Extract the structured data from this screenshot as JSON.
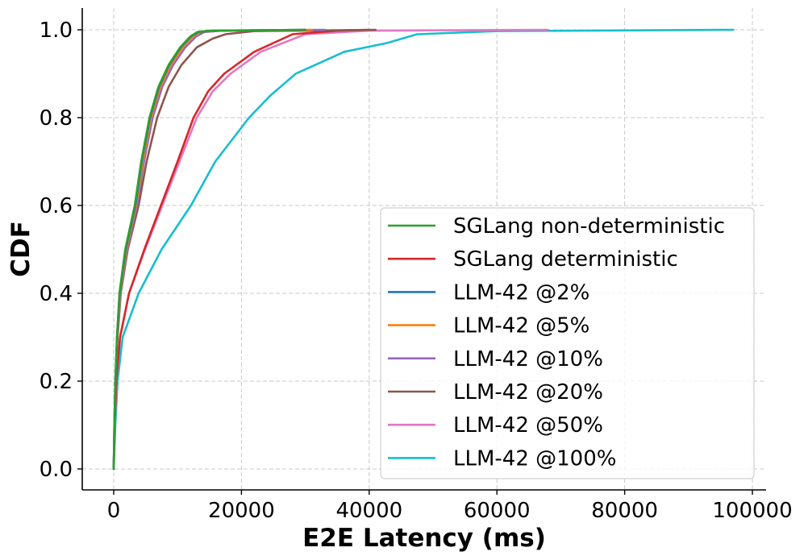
{
  "chart_data": {
    "type": "line",
    "title": "",
    "xlabel": "E2E Latency (ms)",
    "ylabel": "CDF",
    "xlim": [
      -5000,
      102000
    ],
    "ylim": [
      -0.05,
      1.05
    ],
    "xticks": [
      0,
      20000,
      40000,
      60000,
      80000,
      100000
    ],
    "xtick_labels": [
      "0",
      "20000",
      "40000",
      "60000",
      "80000",
      "100000"
    ],
    "yticks": [
      0.0,
      0.2,
      0.4,
      0.6,
      0.8,
      1.0
    ],
    "ytick_labels": [
      "0.0",
      "0.2",
      "0.4",
      "0.6",
      "0.8",
      "1.0"
    ],
    "grid": true,
    "legend_position": "lower-right",
    "series": [
      {
        "name": "SGLang non-deterministic",
        "color": "#2ca02c",
        "x": [
          0,
          100,
          250,
          500,
          900,
          1800,
          3300,
          4300,
          5600,
          7000,
          8600,
          10400,
          12000,
          13100,
          15000,
          30000
        ],
        "y": [
          0,
          0.1,
          0.2,
          0.3,
          0.4,
          0.5,
          0.6,
          0.7,
          0.8,
          0.87,
          0.92,
          0.96,
          0.985,
          0.995,
          0.998,
          1.0
        ]
      },
      {
        "name": "SGLang deterministic",
        "color": "#d62728",
        "x": [
          0,
          150,
          400,
          1000,
          2400,
          4800,
          7400,
          10000,
          12500,
          14800,
          17300,
          22000,
          28000,
          35000,
          40000
        ],
        "y": [
          0,
          0.1,
          0.2,
          0.3,
          0.4,
          0.5,
          0.6,
          0.7,
          0.8,
          0.86,
          0.9,
          0.95,
          0.99,
          0.998,
          1.0
        ]
      },
      {
        "name": "LLM-42 @2%",
        "color": "#1f77b4",
        "x": [
          0,
          100,
          260,
          520,
          950,
          1900,
          3400,
          4400,
          5700,
          7100,
          8700,
          10500,
          12100,
          13300,
          15500,
          30000
        ],
        "y": [
          0,
          0.1,
          0.2,
          0.3,
          0.4,
          0.5,
          0.6,
          0.7,
          0.8,
          0.87,
          0.92,
          0.96,
          0.985,
          0.995,
          0.998,
          1.0
        ]
      },
      {
        "name": "LLM-42 @5%",
        "color": "#ff7f0e",
        "x": [
          0,
          105,
          270,
          540,
          1000,
          2000,
          3500,
          4550,
          5850,
          7300,
          8950,
          10800,
          12400,
          13600,
          16000,
          31000
        ],
        "y": [
          0,
          0.1,
          0.2,
          0.3,
          0.4,
          0.5,
          0.6,
          0.7,
          0.8,
          0.87,
          0.92,
          0.96,
          0.985,
          0.995,
          0.998,
          1.0
        ]
      },
      {
        "name": "LLM-42 @10%",
        "color": "#9467bd",
        "x": [
          0,
          110,
          280,
          560,
          1050,
          2100,
          3650,
          4750,
          6100,
          7600,
          9300,
          11200,
          12900,
          14200,
          17000,
          33000
        ],
        "y": [
          0,
          0.1,
          0.2,
          0.3,
          0.4,
          0.5,
          0.6,
          0.7,
          0.8,
          0.87,
          0.92,
          0.96,
          0.985,
          0.995,
          0.998,
          1.0
        ]
      },
      {
        "name": "LLM-42 @20%",
        "color": "#8c564b",
        "x": [
          0,
          120,
          300,
          600,
          1100,
          2200,
          3900,
          5150,
          6800,
          8600,
          10600,
          13000,
          15500,
          17500,
          22000,
          41000
        ],
        "y": [
          0,
          0.1,
          0.2,
          0.3,
          0.4,
          0.5,
          0.6,
          0.7,
          0.8,
          0.87,
          0.92,
          0.96,
          0.98,
          0.99,
          0.997,
          1.0
        ]
      },
      {
        "name": "LLM-42 @50%",
        "color": "#e377c2",
        "x": [
          0,
          150,
          450,
          1000,
          2400,
          4900,
          7600,
          10300,
          13000,
          15500,
          18300,
          23000,
          30000,
          40000,
          68000
        ],
        "y": [
          0,
          0.1,
          0.2,
          0.3,
          0.4,
          0.5,
          0.6,
          0.7,
          0.8,
          0.86,
          0.9,
          0.95,
          0.99,
          0.998,
          1.0
        ]
      },
      {
        "name": "LLM-42 @100%",
        "color": "#17becf",
        "x": [
          0,
          250,
          600,
          1400,
          3900,
          7500,
          12100,
          15900,
          21200,
          24500,
          28500,
          36100,
          42800,
          47500,
          60000,
          97000
        ],
        "y": [
          0,
          0.1,
          0.2,
          0.3,
          0.4,
          0.5,
          0.6,
          0.7,
          0.8,
          0.85,
          0.9,
          0.95,
          0.97,
          0.99,
          0.997,
          1.0
        ]
      }
    ]
  }
}
